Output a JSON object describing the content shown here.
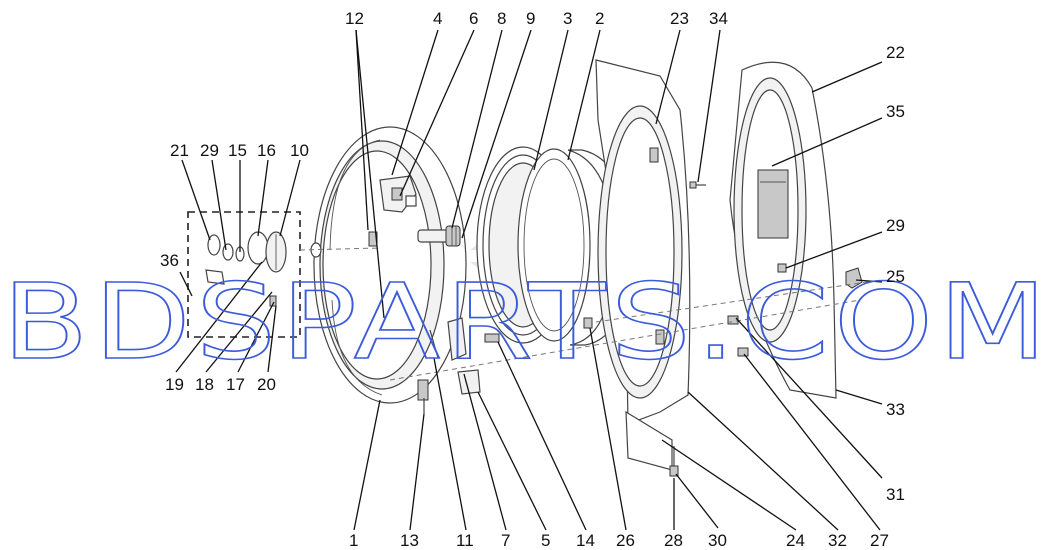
{
  "watermark": "BDSPARTS.COM",
  "callouts": {
    "c1": "1",
    "c2": "2",
    "c3": "3",
    "c4": "4",
    "c5": "5",
    "c6": "6",
    "c7": "7",
    "c8": "8",
    "c9": "9",
    "c10": "10",
    "c11": "11",
    "c12": "12",
    "c13": "13",
    "c14": "14",
    "c15": "15",
    "c16": "16",
    "c17": "17",
    "c18": "18",
    "c19": "19",
    "c20": "20",
    "c21": "21",
    "c22": "22",
    "c23": "23",
    "c24": "24",
    "c25": "25",
    "c26": "26",
    "c27": "27",
    "c28": "28",
    "c29a": "29",
    "c29b": "29",
    "c30": "30",
    "c31": "31",
    "c32": "32",
    "c33": "33",
    "c34": "34",
    "c35": "35",
    "c36": "36"
  }
}
